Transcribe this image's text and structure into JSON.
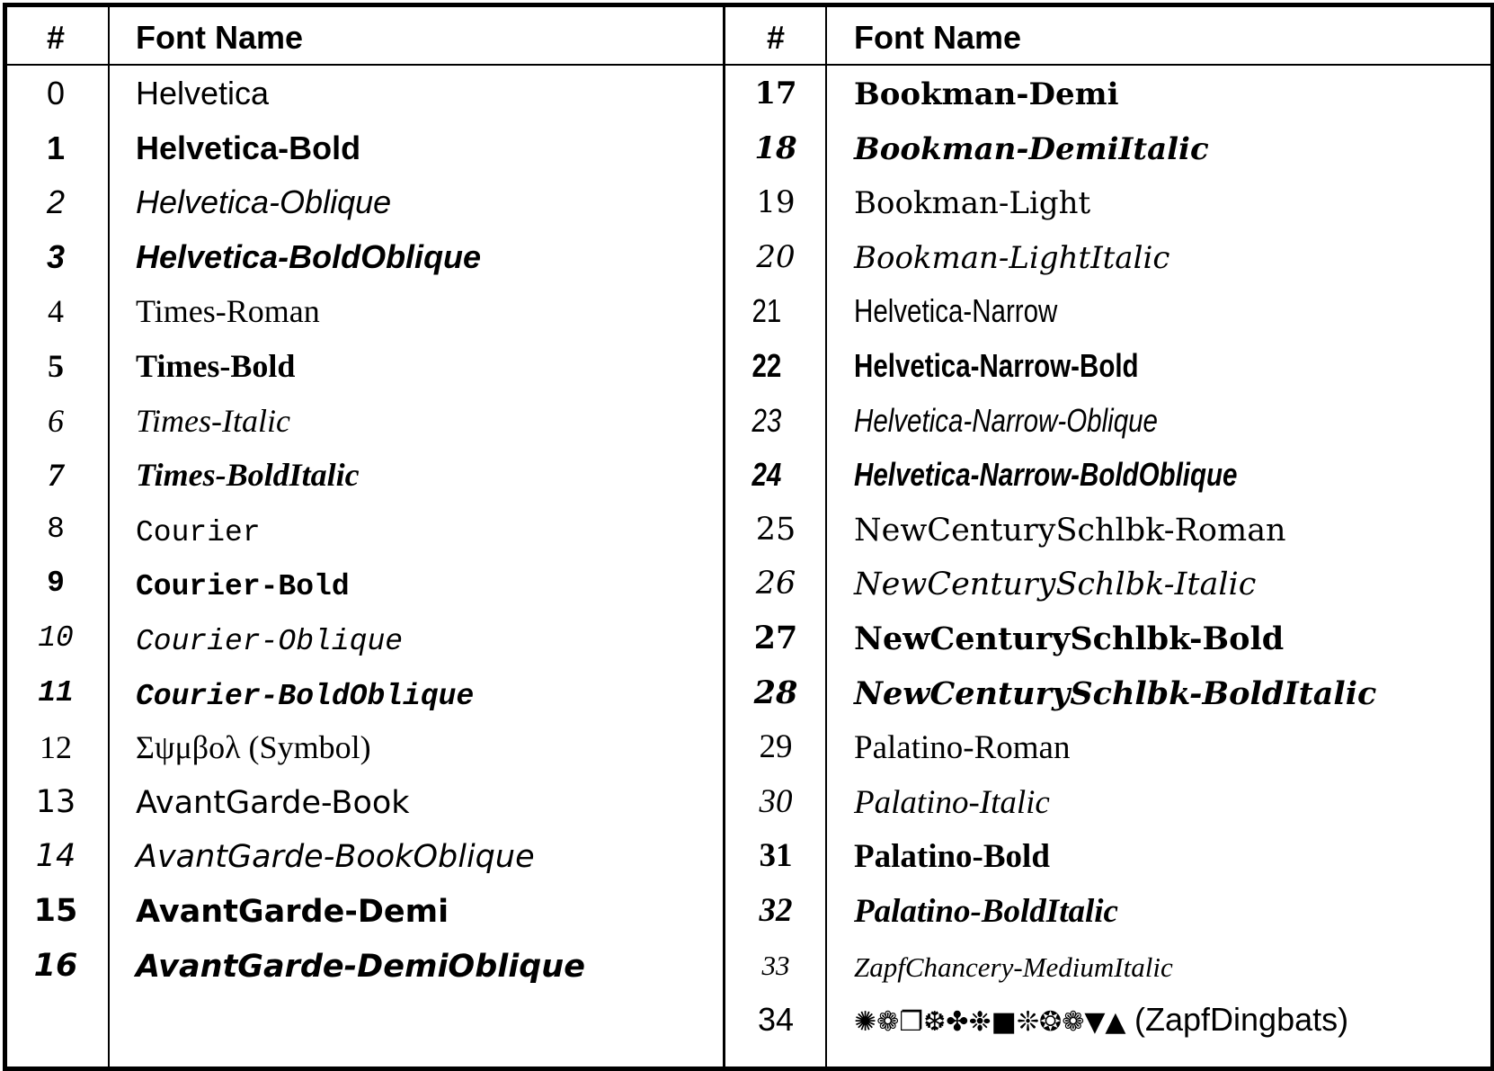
{
  "header": {
    "num_label": "#",
    "name_label": "Font Name"
  },
  "left_fonts": [
    {
      "num": "0",
      "name": "Helvetica"
    },
    {
      "num": "1",
      "name": "Helvetica-Bold"
    },
    {
      "num": "2",
      "name": "Helvetica-Oblique"
    },
    {
      "num": "3",
      "name": "Helvetica-BoldOblique"
    },
    {
      "num": "4",
      "name": "Times-Roman"
    },
    {
      "num": "5",
      "name": "Times-Bold"
    },
    {
      "num": "6",
      "name": "Times-Italic"
    },
    {
      "num": "7",
      "name": "Times-BoldItalic"
    },
    {
      "num": "8",
      "name": "Courier"
    },
    {
      "num": "9",
      "name": "Courier-Bold"
    },
    {
      "num": "10",
      "name": "Courier-Oblique"
    },
    {
      "num": "11",
      "name": "Courier-BoldOblique"
    },
    {
      "num": "12",
      "name": "Σψμβολ (Symbol)"
    },
    {
      "num": "13",
      "name": "AvantGarde-Book"
    },
    {
      "num": "14",
      "name": "AvantGarde-BookOblique"
    },
    {
      "num": "15",
      "name": "AvantGarde-Demi"
    },
    {
      "num": "16",
      "name": "AvantGarde-DemiOblique"
    }
  ],
  "right_fonts": [
    {
      "num": "17",
      "name": "Bookman-Demi"
    },
    {
      "num": "18",
      "name": "Bookman-DemiItalic"
    },
    {
      "num": "19",
      "name": "Bookman-Light"
    },
    {
      "num": "20",
      "name": "Bookman-LightItalic"
    },
    {
      "num": "21",
      "name": "Helvetica-Narrow"
    },
    {
      "num": "22",
      "name": "Helvetica-Narrow-Bold"
    },
    {
      "num": "23",
      "name": "Helvetica-Narrow-Oblique"
    },
    {
      "num": "24",
      "name": "Helvetica-Narrow-BoldOblique"
    },
    {
      "num": "25",
      "name": "NewCenturySchlbk-Roman"
    },
    {
      "num": "26",
      "name": "NewCenturySchlbk-Italic"
    },
    {
      "num": "27",
      "name": "NewCenturySchlbk-Bold"
    },
    {
      "num": "28",
      "name": "NewCenturySchlbk-BoldItalic"
    },
    {
      "num": "29",
      "name": "Palatino-Roman"
    },
    {
      "num": "30",
      "name": "Palatino-Italic"
    },
    {
      "num": "31",
      "name": "Palatino-Bold"
    },
    {
      "num": "32",
      "name": "Palatino-BoldItalic"
    },
    {
      "num": "33",
      "name": "ZapfChancery-MediumItalic"
    },
    {
      "num": "34",
      "name": "✺❁❐❆✤❉■❊❂❁▼▲ (ZapfDingbats)"
    }
  ]
}
